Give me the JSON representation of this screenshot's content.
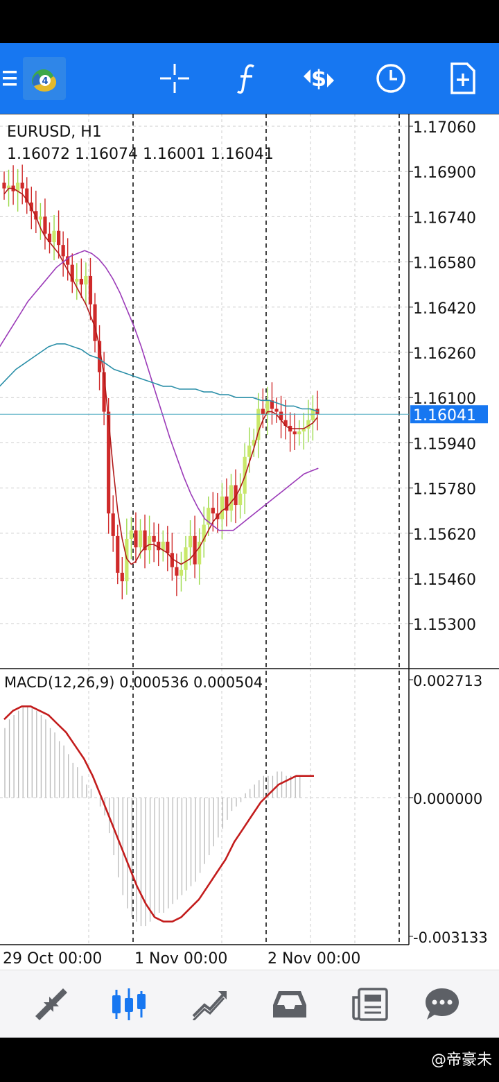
{
  "toolbar": {
    "icons": [
      "menu-icon",
      "app-logo-icon",
      "crosshair-icon",
      "function-f-icon",
      "currency-exchange-icon",
      "clock-icon",
      "new-order-icon"
    ]
  },
  "chart": {
    "symbol_title": "EURUSD, H1",
    "ohlc_text": "1.16072 1.16074 1.16001 1.16041",
    "current_price_label": "1.16041",
    "price_ticks": [
      "1.17060",
      "1.16900",
      "1.16740",
      "1.16580",
      "1.16420",
      "1.16260",
      "1.16100",
      "1.15940",
      "1.15780",
      "1.15620",
      "1.15460",
      "1.15300"
    ],
    "macd_label": "MACD(12,26,9) 0.000536 0.000504",
    "macd_ticks": [
      "0.002713",
      "0.000000",
      "-0.003133"
    ],
    "date_labels": [
      "29 Oct 00:00",
      "1 Nov 00:00",
      "2 Nov 00:00"
    ],
    "colors": {
      "bull": "#9bd94a",
      "bear": "#cf2a2a",
      "bull_body_up": "#c9e86a",
      "ma_fast": "#b01818",
      "ma_slow": "#9b3ab8",
      "ma_long": "#2b8fa8",
      "price_line": "#4aa8c0",
      "macd_signal": "#c31c1c",
      "grid": "#cccccc"
    }
  },
  "bottom_nav": {
    "icons": [
      "quotes-icon",
      "chart-icon",
      "trade-icon",
      "history-icon",
      "news-icon",
      "messages-icon"
    ],
    "active_index": 1
  },
  "footer": {
    "watermark": "@帝豪未"
  },
  "chart_data": {
    "type": "candlestick",
    "title": "EURUSD, H1",
    "ylim": [
      1.153,
      1.1706
    ],
    "ohlc_last": {
      "open": 1.16072,
      "high": 1.16074,
      "low": 1.16001,
      "close": 1.16041
    },
    "close": [
      1.1684,
      1.1685,
      1.1683,
      1.1686,
      1.1684,
      1.1679,
      1.1676,
      1.1673,
      1.1674,
      1.1668,
      1.1665,
      1.1669,
      1.1664,
      1.166,
      1.1657,
      1.1651,
      1.1652,
      1.165,
      1.1653,
      1.1643,
      1.163,
      1.1619,
      1.1605,
      1.1569,
      1.1561,
      1.1548,
      1.1545,
      1.156,
      1.1563,
      1.1557,
      1.1563,
      1.1556,
      1.1561,
      1.1559,
      1.1556,
      1.1559,
      1.1555,
      1.155,
      1.1547,
      1.1549,
      1.1557,
      1.1561,
      1.1551,
      1.1559,
      1.1565,
      1.1571,
      1.1569,
      1.1567,
      1.1575,
      1.157,
      1.1579,
      1.1572,
      1.1576,
      1.1589,
      1.1593,
      1.1595,
      1.1606,
      1.1604,
      1.1609,
      1.1606,
      1.1605,
      1.1602,
      1.16,
      1.1598,
      1.1597,
      1.1598,
      1.1599,
      1.1602,
      1.1606,
      1.1604
    ],
    "ma_series": [
      {
        "values": [
          1.1682,
          1.1684,
          1.1684,
          1.1683,
          1.1682,
          1.168,
          1.1677,
          1.1674,
          1.167,
          1.1667,
          1.1665,
          1.1663,
          1.1661,
          1.1658,
          1.1655,
          1.1652,
          1.1649,
          1.1646,
          1.1643,
          1.1639,
          1.1635,
          1.1628,
          1.1618,
          1.1602,
          1.1585,
          1.157,
          1.156,
          1.1553,
          1.1551,
          1.1552,
          1.1555,
          1.1557,
          1.1558,
          1.1558,
          1.1557,
          1.1556,
          1.1555,
          1.1553,
          1.1552,
          1.1551,
          1.1552,
          1.1553,
          1.1555,
          1.1557,
          1.156,
          1.1563,
          1.1566,
          1.1568,
          1.157,
          1.1571,
          1.1573,
          1.1575,
          1.1578,
          1.1582,
          1.1587,
          1.1592,
          1.1598,
          1.1602,
          1.1605,
          1.1605,
          1.1604,
          1.1602,
          1.16,
          1.1599,
          1.1599,
          1.1599,
          1.1599,
          1.16,
          1.1601,
          1.1603
        ]
      },
      {
        "values": [
          1.1628,
          1.1632,
          1.1636,
          1.164,
          1.1644,
          1.1647,
          1.165,
          1.1653,
          1.1656,
          1.1658,
          1.166,
          1.1661,
          1.1662,
          1.1661,
          1.1659,
          1.1656,
          1.1652,
          1.1647,
          1.1641,
          1.1635,
          1.1628,
          1.162,
          1.1612,
          1.1604,
          1.1596,
          1.1589,
          1.1582,
          1.1576,
          1.1571,
          1.1567,
          1.1565,
          1.1563,
          1.1563,
          1.1563,
          1.1565,
          1.1567,
          1.1569,
          1.1571,
          1.1573,
          1.1575,
          1.1577,
          1.1579,
          1.1581,
          1.1583,
          1.1584,
          1.1585
        ]
      },
      {
        "values": [
          1.1614,
          1.1617,
          1.162,
          1.1622,
          1.1624,
          1.1626,
          1.1628,
          1.1629,
          1.1629,
          1.1628,
          1.1627,
          1.1625,
          1.1624,
          1.1622,
          1.162,
          1.1619,
          1.1618,
          1.1617,
          1.1616,
          1.1615,
          1.1614,
          1.1614,
          1.1613,
          1.1613,
          1.1613,
          1.1612,
          1.1612,
          1.1611,
          1.1611,
          1.161,
          1.161,
          1.161,
          1.1609,
          1.1609,
          1.1608,
          1.1607,
          1.1607,
          1.1606,
          1.1606,
          1.1605
        ]
      }
    ],
    "macd_histogram": [
      0.0016,
      0.0018,
      0.0019,
      0.002,
      0.0021,
      0.0021,
      0.0021,
      0.002,
      0.0019,
      0.0018,
      0.0016,
      0.0015,
      0.0013,
      0.0012,
      0.001,
      0.0008,
      0.0007,
      0.0005,
      0.0003,
      0.0002,
      0.0,
      -0.0002,
      -0.0004,
      -0.0008,
      -0.0013,
      -0.0018,
      -0.0022,
      -0.0025,
      -0.0027,
      -0.0028,
      -0.0029,
      -0.0029,
      -0.0028,
      -0.0027,
      -0.0026,
      -0.0026,
      -0.0025,
      -0.0024,
      -0.0023,
      -0.0022,
      -0.0021,
      -0.002,
      -0.0019,
      -0.0017,
      -0.0015,
      -0.0013,
      -0.0011,
      -0.0009,
      -0.0007,
      -0.0005,
      -0.0003,
      -0.0002,
      -0.0001,
      0.0001,
      0.0002,
      0.0003,
      0.0004,
      0.0005,
      0.0005,
      0.0005,
      0.0006,
      0.0006,
      0.0005,
      0.0005,
      0.0005,
      0.0005
    ],
    "macd_signal": [
      0.0018,
      0.002,
      0.0021,
      0.0021,
      0.002,
      0.0019,
      0.0017,
      0.0015,
      0.0012,
      0.0009,
      0.0005,
      0.0,
      -0.0005,
      -0.001,
      -0.0015,
      -0.002,
      -0.0024,
      -0.0027,
      -0.0028,
      -0.0028,
      -0.0027,
      -0.0025,
      -0.0023,
      -0.002,
      -0.0017,
      -0.0014,
      -0.001,
      -0.0007,
      -0.0004,
      -0.0001,
      0.0001,
      0.0003,
      0.0004,
      0.0005,
      0.0005,
      0.0005
    ],
    "macd_ylim": [
      -0.003133,
      0.002713
    ]
  }
}
